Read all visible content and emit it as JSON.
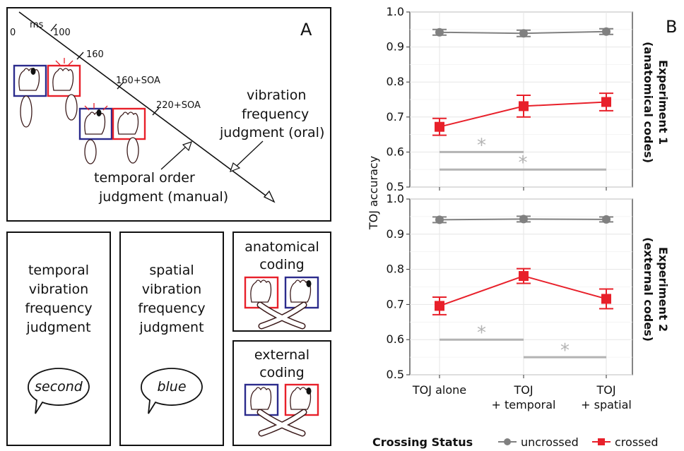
{
  "panel_a": {
    "letter": "A",
    "timeline": {
      "zero": "0",
      "ms": "ms",
      "t100": "100",
      "t160": "160",
      "t160soa": "160+SOA",
      "t220soa": "220+SOA"
    },
    "vib_label_1": "vibration",
    "vib_label_2": "frequency",
    "vib_label_3": "judgment (oral)",
    "toj_label_1": "temporal order",
    "toj_label_2": "judgment (manual)"
  },
  "boxes": {
    "temporal": [
      "temporal",
      "vibration",
      "frequency",
      "judgment"
    ],
    "temporal_speech": "second",
    "spatial": [
      "spatial",
      "vibration",
      "frequency",
      "judgment"
    ],
    "spatial_speech": "blue",
    "anatomical": [
      "anatomical",
      "coding"
    ],
    "external": [
      "external",
      "coding"
    ]
  },
  "panel_b": {
    "letter": "B",
    "ylabel": "TOJ accuracy",
    "exp1": [
      "Experiment 1",
      "(anatomical codes)"
    ],
    "exp2": [
      "Experiment 2",
      "(external codes)"
    ],
    "legend_title": "Crossing Status",
    "legend_uncrossed": "uncrossed",
    "legend_crossed": "crossed",
    "star": "*"
  },
  "chart_data": [
    {
      "type": "line",
      "categories": [
        "TOJ alone",
        "TOJ\n+ temporal",
        "TOJ\n+ spatial"
      ],
      "ylabel": "TOJ accuracy",
      "ylim": [
        0.5,
        1.0
      ],
      "yticks": [
        "0.5",
        "0.6",
        "0.7",
        "0.8",
        "0.9",
        "1.0"
      ],
      "series": [
        {
          "name": "uncrossed",
          "color": "#808080",
          "marker": "circle",
          "values": [
            0.942,
            0.939,
            0.944
          ],
          "errors": [
            0.008,
            0.009,
            0.008
          ]
        },
        {
          "name": "crossed",
          "color": "#e8202a",
          "marker": "square",
          "values": [
            0.672,
            0.731,
            0.743
          ],
          "errors": [
            0.024,
            0.031,
            0.025
          ]
        }
      ],
      "significance": [
        {
          "from": 0,
          "to": 1,
          "y": 0.6,
          "label": "*"
        },
        {
          "from": 0,
          "to": 2,
          "y": 0.55,
          "label": "*"
        }
      ]
    },
    {
      "type": "line",
      "categories": [
        "TOJ alone",
        "TOJ\n+ temporal",
        "TOJ\n+ spatial"
      ],
      "ylabel": "TOJ accuracy",
      "ylim": [
        0.5,
        1.0
      ],
      "yticks": [
        "0.5",
        "0.6",
        "0.7",
        "0.8",
        "0.9",
        "1.0"
      ],
      "xtick_labels": [
        [
          "TOJ alone"
        ],
        [
          "TOJ",
          "+ temporal"
        ],
        [
          "TOJ",
          "+ spatial"
        ]
      ],
      "series": [
        {
          "name": "uncrossed",
          "color": "#808080",
          "marker": "circle",
          "values": [
            0.941,
            0.943,
            0.942
          ],
          "errors": [
            0.008,
            0.008,
            0.007
          ]
        },
        {
          "name": "crossed",
          "color": "#e8202a",
          "marker": "square",
          "values": [
            0.696,
            0.781,
            0.716
          ],
          "errors": [
            0.025,
            0.021,
            0.028
          ]
        }
      ],
      "significance": [
        {
          "from": 0,
          "to": 1,
          "y": 0.6,
          "label": "*"
        },
        {
          "from": 1,
          "to": 2,
          "y": 0.55,
          "label": "*"
        }
      ]
    }
  ]
}
